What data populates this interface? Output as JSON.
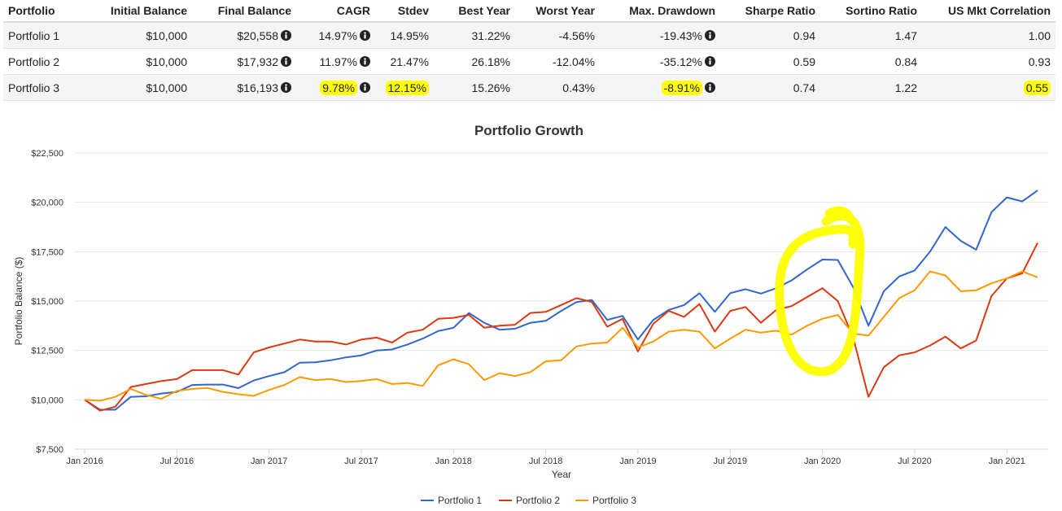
{
  "table": {
    "headers": [
      "Portfolio",
      "Initial Balance",
      "Final Balance",
      "CAGR",
      "Stdev",
      "Best Year",
      "Worst Year",
      "Max. Drawdown",
      "Sharpe Ratio",
      "Sortino Ratio",
      "US Mkt Correlation"
    ],
    "rows": [
      {
        "portfolio": "Portfolio 1",
        "initial": "$10,000",
        "final": "$20,558",
        "cagr": "14.97%",
        "stdev": "14.95%",
        "best": "31.22%",
        "worst": "-4.56%",
        "maxdd": "-19.43%",
        "sharpe": "0.94",
        "sortino": "1.47",
        "corr": "1.00"
      },
      {
        "portfolio": "Portfolio 2",
        "initial": "$10,000",
        "final": "$17,932",
        "cagr": "11.97%",
        "stdev": "21.47%",
        "best": "26.18%",
        "worst": "-12.04%",
        "maxdd": "-35.12%",
        "sharpe": "0.59",
        "sortino": "0.84",
        "corr": "0.93"
      },
      {
        "portfolio": "Portfolio 3",
        "initial": "$10,000",
        "final": "$16,193",
        "cagr": "9.78%",
        "stdev": "12.15%",
        "best": "15.26%",
        "worst": "0.43%",
        "maxdd": "-8.91%",
        "sharpe": "0.74",
        "sortino": "1.22",
        "corr": "0.55"
      }
    ],
    "info_icon": "info-circle-icon",
    "highlight_color": "#ffff00"
  },
  "chart_data": {
    "type": "line",
    "title": "Portfolio Growth",
    "xlabel": "Year",
    "ylabel": "Portfolio Balance ($)",
    "ylim": [
      7500,
      22500
    ],
    "yticks": [
      7500,
      10000,
      12500,
      15000,
      17500,
      20000,
      22500
    ],
    "ytick_labels": [
      "$7,500",
      "$10,000",
      "$12,500",
      "$15,000",
      "$17,500",
      "$20,000",
      "$22,500"
    ],
    "x": [
      "2016-01",
      "2016-02",
      "2016-03",
      "2016-04",
      "2016-05",
      "2016-06",
      "2016-07",
      "2016-08",
      "2016-09",
      "2016-10",
      "2016-11",
      "2016-12",
      "2017-01",
      "2017-02",
      "2017-03",
      "2017-04",
      "2017-05",
      "2017-06",
      "2017-07",
      "2017-08",
      "2017-09",
      "2017-10",
      "2017-11",
      "2017-12",
      "2018-01",
      "2018-02",
      "2018-03",
      "2018-04",
      "2018-05",
      "2018-06",
      "2018-07",
      "2018-08",
      "2018-09",
      "2018-10",
      "2018-11",
      "2018-12",
      "2019-01",
      "2019-02",
      "2019-03",
      "2019-04",
      "2019-05",
      "2019-06",
      "2019-07",
      "2019-08",
      "2019-09",
      "2019-10",
      "2019-11",
      "2019-12",
      "2020-01",
      "2020-02",
      "2020-03",
      "2020-04",
      "2020-05",
      "2020-06",
      "2020-07",
      "2020-08",
      "2020-09",
      "2020-10",
      "2020-11",
      "2020-12",
      "2021-01",
      "2021-02",
      "2021-03"
    ],
    "xticks": [
      "2016-01",
      "2016-07",
      "2017-01",
      "2017-07",
      "2018-01",
      "2018-07",
      "2019-01",
      "2019-07",
      "2020-01",
      "2020-07",
      "2021-01"
    ],
    "xtick_labels": [
      "Jan 2016",
      "Jul 2016",
      "Jan 2017",
      "Jul 2017",
      "Jan 2018",
      "Jul 2018",
      "Jan 2019",
      "Jul 2019",
      "Jan 2020",
      "Jul 2020",
      "Jan 2021"
    ],
    "grid": true,
    "legend_position": "bottom-center",
    "series": [
      {
        "name": "Portfolio 1",
        "color": "#3366cc",
        "values": [
          10000,
          9500,
          9500,
          10150,
          10180,
          10320,
          10400,
          10750,
          10770,
          10770,
          10590,
          10980,
          11200,
          11400,
          11880,
          11900,
          12000,
          12150,
          12250,
          12500,
          12550,
          12800,
          13100,
          13480,
          13650,
          14400,
          13900,
          13550,
          13600,
          13900,
          14000,
          14500,
          14950,
          15050,
          14050,
          14250,
          13050,
          14050,
          14550,
          14800,
          15400,
          14450,
          15400,
          15600,
          15380,
          15650,
          16050,
          16600,
          17100,
          17080,
          15700,
          13750,
          15500,
          16250,
          16550,
          17500,
          18750,
          18050,
          17600,
          19500,
          20250,
          20050,
          20600
        ]
      },
      {
        "name": "Portfolio 2",
        "color": "#dc3912",
        "values": [
          10000,
          9450,
          9650,
          10650,
          10800,
          10950,
          11050,
          11500,
          11500,
          11500,
          11280,
          12400,
          12650,
          12850,
          13050,
          12950,
          12950,
          12800,
          13050,
          13150,
          12900,
          13400,
          13550,
          14100,
          14150,
          14300,
          13650,
          13750,
          13800,
          14400,
          14450,
          14800,
          15150,
          14950,
          13700,
          14100,
          12450,
          13850,
          14500,
          14200,
          14850,
          13450,
          14500,
          14700,
          13900,
          14550,
          14750,
          15200,
          15650,
          15000,
          13150,
          10150,
          11650,
          12250,
          12400,
          12750,
          13200,
          12600,
          13000,
          15250,
          16150,
          16400,
          17950
        ]
      },
      {
        "name": "Portfolio 3",
        "color": "#ff9900",
        "values": [
          10000,
          9950,
          10150,
          10550,
          10250,
          10050,
          10450,
          10550,
          10600,
          10400,
          10280,
          10200,
          10500,
          10750,
          11150,
          11000,
          11050,
          10900,
          10950,
          11050,
          10800,
          10850,
          10700,
          11750,
          12050,
          11800,
          11000,
          11350,
          11200,
          11400,
          11950,
          12000,
          12700,
          12850,
          12900,
          13650,
          12650,
          12950,
          13450,
          13550,
          13450,
          12600,
          13100,
          13550,
          13400,
          13500,
          13300,
          13750,
          14100,
          14300,
          13350,
          13250,
          14200,
          15150,
          15550,
          16500,
          16300,
          15500,
          15550,
          15900,
          16150,
          16500,
          16200
        ]
      }
    ],
    "annotation": {
      "type": "hand-drawn-circle",
      "color": "#ffff00",
      "around": "Portfolio 1 peak 2019-12 to 2020-02"
    }
  }
}
